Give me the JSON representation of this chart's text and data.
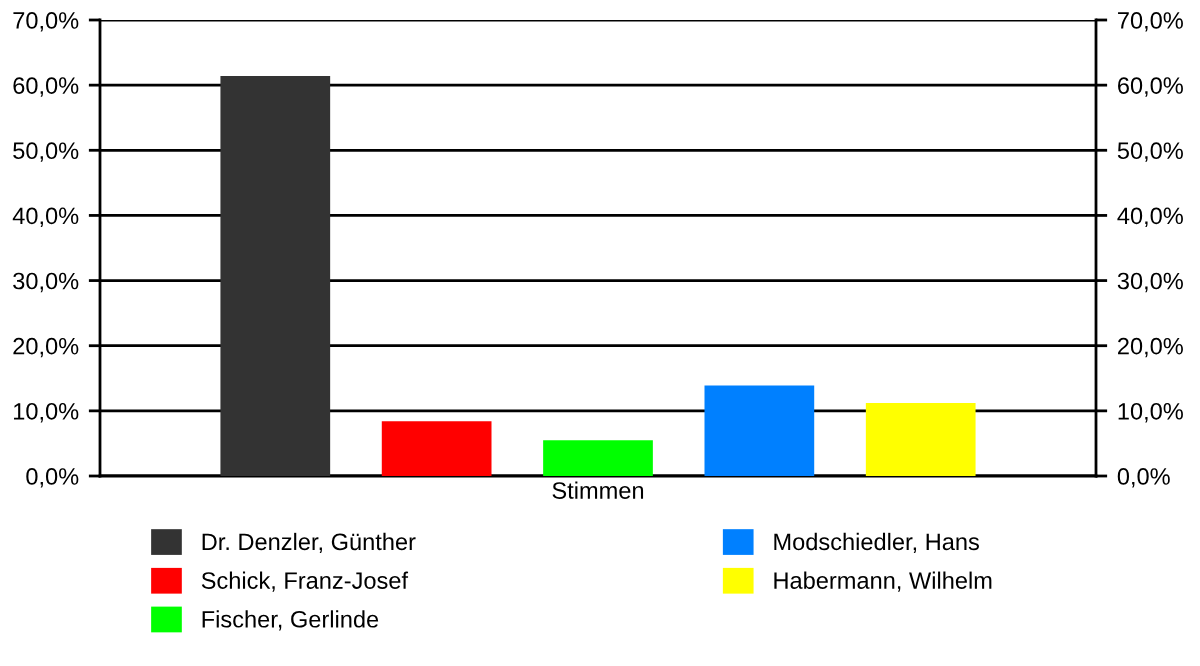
{
  "chart_data": {
    "type": "bar",
    "categories": [
      "Stimmen"
    ],
    "series": [
      {
        "name": "Dr. Denzler, Günther",
        "color": "#333333",
        "values": [
          61.4
        ]
      },
      {
        "name": "Schick, Franz-Josef",
        "color": "#ff0000",
        "values": [
          8.4
        ]
      },
      {
        "name": "Fischer, Gerlinde",
        "color": "#00ff00",
        "values": [
          5.5
        ]
      },
      {
        "name": "Modschiedler, Hans",
        "color": "#0080ff",
        "values": [
          13.9
        ]
      },
      {
        "name": "Habermann, Wilhelm",
        "color": "#ffff00",
        "values": [
          11.2
        ]
      }
    ],
    "ylim": [
      0,
      70
    ],
    "yticks": [
      {
        "value": 0,
        "label": "0,0%"
      },
      {
        "value": 10,
        "label": "10,0%"
      },
      {
        "value": 20,
        "label": "20,0%"
      },
      {
        "value": 30,
        "label": "30,0%"
      },
      {
        "value": 40,
        "label": "40,0%"
      },
      {
        "value": 50,
        "label": "50,0%"
      },
      {
        "value": 60,
        "label": "60,0%"
      },
      {
        "value": 70,
        "label": "70,0%"
      }
    ],
    "grid": "y",
    "legend": "bottom"
  }
}
